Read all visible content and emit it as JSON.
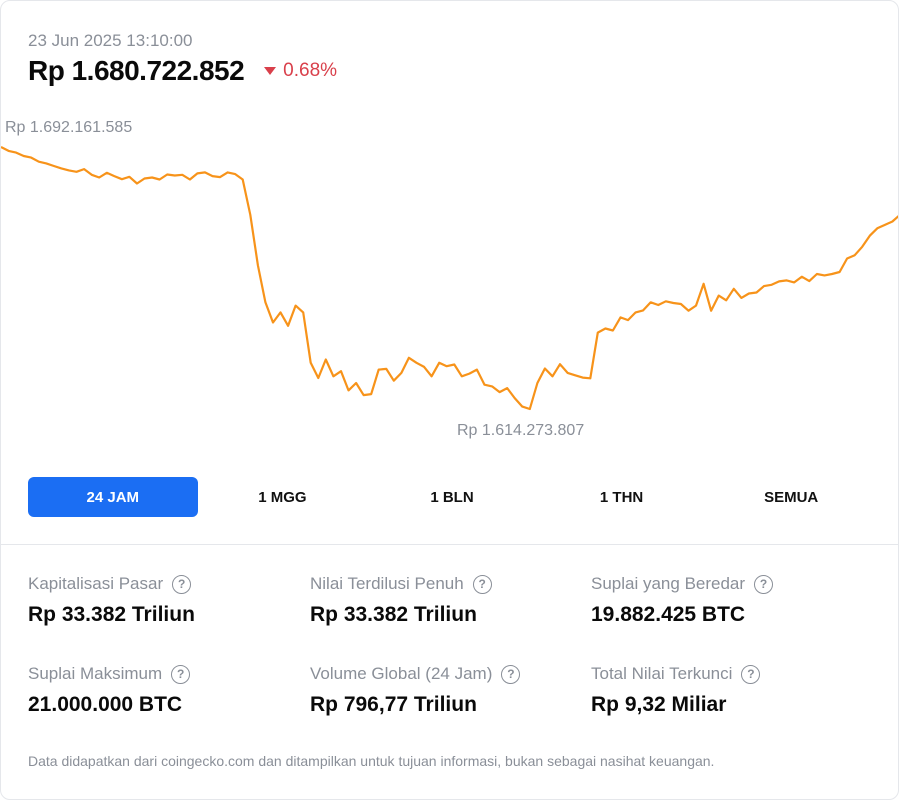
{
  "header": {
    "datetime": "23 Jun 2025 13:10:00",
    "price": "Rp 1.680.722.852",
    "change": "0.68%",
    "change_color": "#d9404b"
  },
  "chart_data": {
    "type": "line",
    "high_label": "Rp 1.692.161.585",
    "low_label": "Rp 1.614.273.807",
    "high": 1692161585,
    "low": 1614273807,
    "color": "#f7931a",
    "grid": false,
    "points": [
      1692161585,
      1691000000,
      1690500000,
      1689500000,
      1689000000,
      1687800000,
      1687300000,
      1686500000,
      1685800000,
      1685200000,
      1684800000,
      1685600000,
      1683900000,
      1683100000,
      1684500000,
      1683500000,
      1682600000,
      1683300000,
      1681300000,
      1682800000,
      1683100000,
      1682500000,
      1684000000,
      1683700000,
      1683900000,
      1682500000,
      1684300000,
      1684600000,
      1683500000,
      1683200000,
      1684600000,
      1684100000,
      1682500000,
      1672000000,
      1657000000,
      1646000000,
      1640000000,
      1643000000,
      1639000000,
      1645000000,
      1643000000,
      1628000000,
      1623500000,
      1629000000,
      1624000000,
      1625500000,
      1619800000,
      1622000000,
      1618400000,
      1618700000,
      1626000000,
      1626200000,
      1622700000,
      1625000000,
      1629500000,
      1628000000,
      1626800000,
      1624000000,
      1628000000,
      1627000000,
      1627500000,
      1624000000,
      1624800000,
      1626000000,
      1621500000,
      1621000000,
      1619300000,
      1620500000,
      1617500000,
      1615000000,
      1614273807,
      1622000000,
      1626300000,
      1624000000,
      1627600000,
      1625000000,
      1624300000,
      1623600000,
      1623400000,
      1637000000,
      1638200000,
      1637600000,
      1641500000,
      1640700000,
      1643000000,
      1643600000,
      1646000000,
      1645200000,
      1646300000,
      1645800000,
      1645500000,
      1643500000,
      1645000000,
      1651500000,
      1643500000,
      1648000000,
      1646600000,
      1650000000,
      1647300000,
      1648600000,
      1648900000,
      1650800000,
      1651200000,
      1652200000,
      1652500000,
      1651900000,
      1653600000,
      1652300000,
      1654400000,
      1654000000,
      1654400000,
      1655000000,
      1659000000,
      1660000000,
      1662500000,
      1665800000,
      1668000000,
      1669000000,
      1670000000,
      1672000000
    ]
  },
  "tabs": [
    "24 JAM",
    "1 MGG",
    "1 BLN",
    "1 THN",
    "SEMUA"
  ],
  "active_tab": 0,
  "stats": [
    {
      "label": "Kapitalisasi Pasar",
      "value": "Rp 33.382 Triliun"
    },
    {
      "label": "Nilai Terdilusi Penuh",
      "value": "Rp 33.382 Triliun"
    },
    {
      "label": "Suplai yang Beredar",
      "value": "19.882.425 BTC"
    },
    {
      "label": "Suplai Maksimum",
      "value": "21.000.000 BTC"
    },
    {
      "label": "Volume Global (24 Jam)",
      "value": "Rp 796,77 Triliun"
    },
    {
      "label": "Total Nilai Terkunci",
      "value": "Rp 9,32 Miliar"
    }
  ],
  "footer": "Data didapatkan dari coingecko.com dan ditampilkan untuk tujuan informasi, bukan sebagai nasihat keuangan.",
  "colors": {
    "accent": "#1b6ef3",
    "line": "#f7931a",
    "muted": "#8a8f98"
  }
}
